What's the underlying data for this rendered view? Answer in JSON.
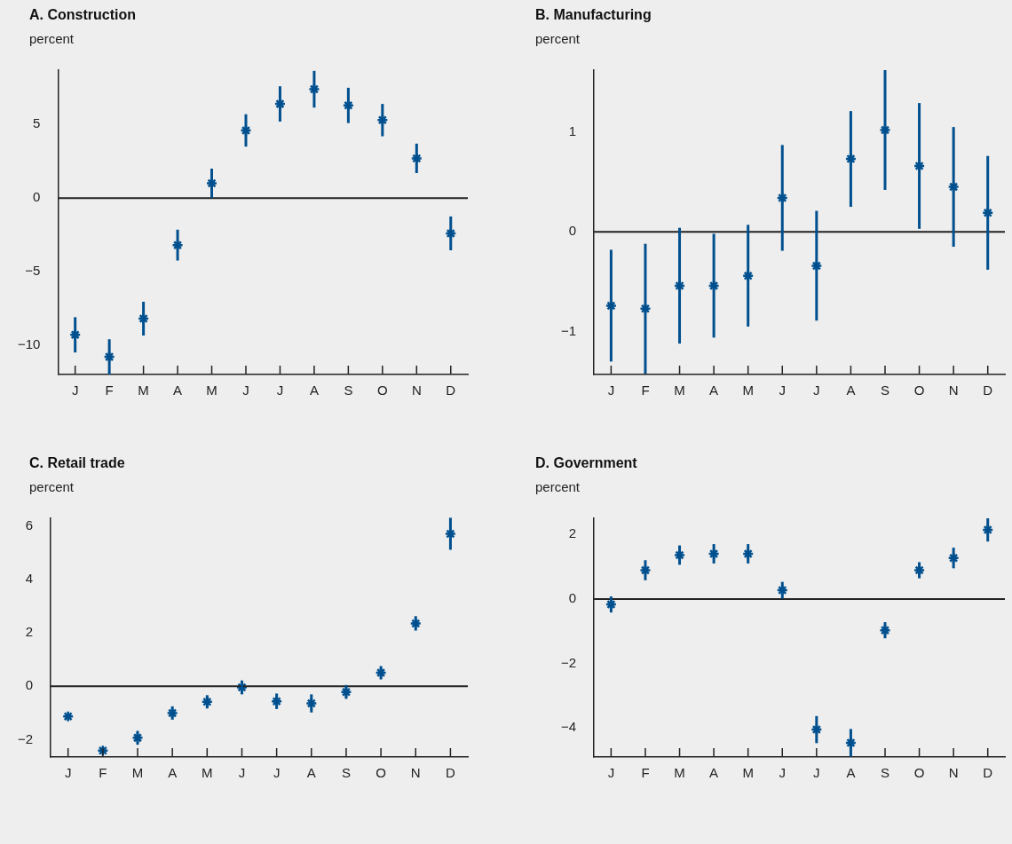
{
  "chart_data": [
    {
      "type": "scatter",
      "title": "A. Construction",
      "ylabel": "percent",
      "categories": [
        "J",
        "F",
        "M",
        "A",
        "M",
        "J",
        "J",
        "A",
        "S",
        "O",
        "N",
        "D"
      ],
      "color": "#00508f",
      "marker": "cross",
      "values": [
        -9.3,
        -10.8,
        -8.2,
        -3.2,
        1.0,
        4.6,
        6.4,
        7.4,
        6.3,
        5.3,
        2.7,
        -2.4
      ],
      "errors": [
        1.2,
        1.2,
        1.15,
        1.05,
        1.0,
        1.1,
        1.2,
        1.25,
        1.2,
        1.1,
        1.0,
        1.15
      ],
      "ylim": [
        -12,
        8.7
      ],
      "yticks": [
        {
          "value": -10,
          "label": "−10"
        },
        {
          "value": -5,
          "label": "−5"
        },
        0,
        5
      ],
      "ref_lines": [
        {
          "axis": "y",
          "value": 0,
          "color": "#222222"
        }
      ]
    },
    {
      "type": "scatter",
      "title": "B. Manufacturing",
      "ylabel": "percent",
      "categories": [
        "J",
        "F",
        "M",
        "A",
        "M",
        "J",
        "J",
        "A",
        "S",
        "O",
        "N",
        "D"
      ],
      "color": "#00508f",
      "marker": "cross",
      "values": [
        -0.74,
        -0.77,
        -0.54,
        -0.54,
        -0.44,
        0.34,
        -0.34,
        0.73,
        1.02,
        0.66,
        0.45,
        0.19
      ],
      "errors": [
        0.56,
        0.65,
        0.58,
        0.52,
        0.51,
        0.53,
        0.55,
        0.48,
        0.6,
        0.63,
        0.6,
        0.57
      ],
      "ylim": [
        -1.43,
        1.62
      ],
      "yticks": [
        {
          "value": -1,
          "label": "−1"
        },
        0,
        1
      ],
      "ref_lines": [
        {
          "axis": "y",
          "value": 0,
          "color": "#222222"
        }
      ]
    },
    {
      "type": "scatter",
      "title": "C. Retail trade",
      "ylabel": "percent",
      "categories": [
        "J",
        "F",
        "M",
        "A",
        "M",
        "J",
        "J",
        "A",
        "S",
        "O",
        "N",
        "D"
      ],
      "color": "#00508f",
      "marker": "cross",
      "values": [
        -1.13,
        -2.41,
        -1.93,
        -1.0,
        -0.58,
        -0.04,
        -0.56,
        -0.64,
        -0.21,
        0.51,
        2.36,
        5.72
      ],
      "errors": [
        null,
        null,
        0.26,
        0.25,
        0.25,
        0.26,
        0.29,
        0.34,
        0.26,
        0.25,
        0.27,
        0.6
      ],
      "ylim": [
        -2.65,
        6.3
      ],
      "yticks": [
        {
          "value": -2,
          "label": "−2"
        },
        0,
        2,
        4,
        6
      ],
      "ref_lines": [
        {
          "axis": "y",
          "value": 0,
          "color": "#222222"
        }
      ]
    },
    {
      "type": "scatter",
      "title": "D. Government",
      "ylabel": "percent",
      "categories": [
        "J",
        "F",
        "M",
        "A",
        "M",
        "J",
        "J",
        "A",
        "S",
        "O",
        "N",
        "D"
      ],
      "color": "#00508f",
      "marker": "cross",
      "values": [
        -0.17,
        0.89,
        1.36,
        1.4,
        1.4,
        0.27,
        -4.05,
        -4.46,
        -0.97,
        0.89,
        1.27,
        2.14
      ],
      "errors": [
        0.25,
        0.31,
        0.3,
        0.3,
        0.3,
        0.26,
        0.42,
        0.43,
        0.25,
        0.25,
        0.32,
        0.36
      ],
      "ylim": [
        -4.9,
        2.5
      ],
      "yticks": [
        {
          "value": -4,
          "label": "−4"
        },
        {
          "value": -2,
          "label": "−2"
        },
        0,
        2
      ],
      "ref_lines": [
        {
          "axis": "y",
          "value": 0,
          "color": "#222222"
        }
      ]
    }
  ]
}
